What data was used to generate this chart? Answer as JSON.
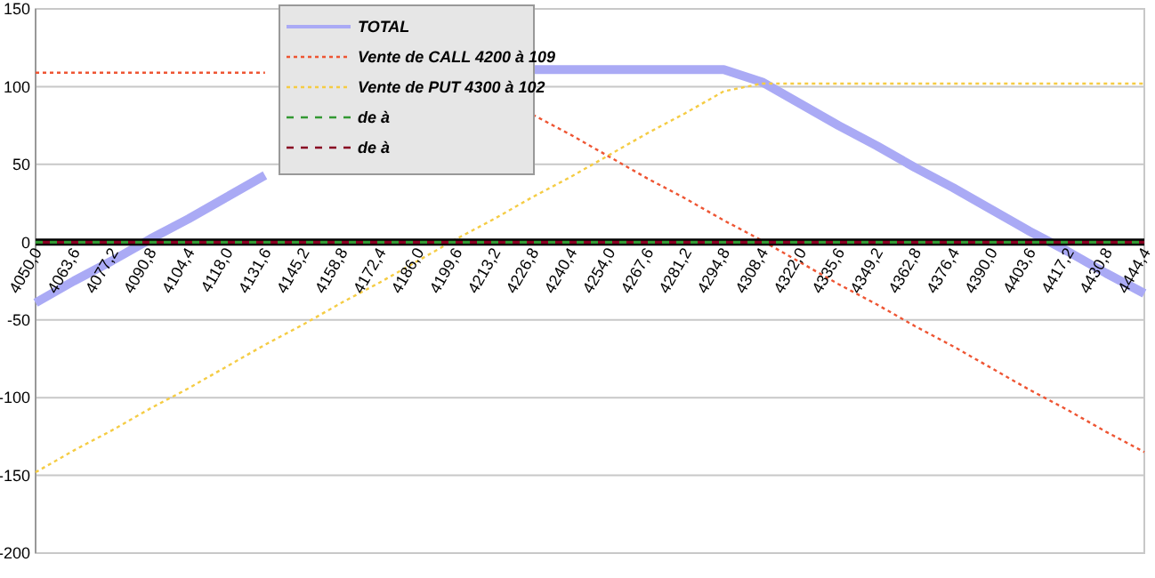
{
  "chart_data": {
    "type": "line",
    "categories": [
      "4050,0",
      "4063,6",
      "4077,2",
      "4090,8",
      "4104,4",
      "4118,0",
      "4131,6",
      "4145,2",
      "4158,8",
      "4172,4",
      "4186,0",
      "4199,6",
      "4213,2",
      "4226,8",
      "4240,4",
      "4254,0",
      "4267,6",
      "4281,2",
      "4294,8",
      "4308,4",
      "4322,0",
      "4335,6",
      "4349,2",
      "4362,8",
      "4376,4",
      "4390,0",
      "4403,6",
      "4417,2",
      "4430,8",
      "4444,4"
    ],
    "series": [
      {
        "name": "TOTAL",
        "color": "#aaaaf5",
        "line_style": "solid",
        "values": [
          -39,
          -25,
          -12,
          2,
          15,
          29,
          43,
          null,
          null,
          null,
          null,
          null,
          null,
          111,
          111,
          111,
          111,
          111,
          111,
          103,
          89,
          75,
          62,
          48,
          35,
          21,
          7,
          -6,
          -20,
          -33
        ]
      },
      {
        "name": "Vente de CALL 4200 à 109",
        "color": "#ee5533",
        "line_style": "dotted",
        "values": [
          109,
          109,
          109,
          109,
          109,
          109,
          109,
          null,
          null,
          null,
          null,
          null,
          null,
          82,
          69,
          55,
          41,
          28,
          14,
          1,
          -13,
          -27,
          -40,
          -54,
          -67,
          -81,
          -95,
          -108,
          -122,
          -135
        ]
      },
      {
        "name": "Vente de PUT 4300 à 102",
        "color": "#f5cc44",
        "line_style": "dotted",
        "values": [
          -148,
          -134,
          -121,
          -107,
          -94,
          -80,
          -66,
          -53,
          -39,
          -26,
          -12,
          2,
          15,
          29,
          42,
          56,
          70,
          83,
          97,
          102,
          102,
          102,
          102,
          102,
          102,
          102,
          102,
          102,
          102,
          102
        ]
      },
      {
        "name": "de  à",
        "color": "#339933",
        "line_style": "dashed",
        "values": [
          0,
          0,
          0,
          0,
          0,
          0,
          0,
          0,
          0,
          0,
          0,
          0,
          0,
          0,
          0,
          0,
          0,
          0,
          0,
          0,
          0,
          0,
          0,
          0,
          0,
          0,
          0,
          0,
          0,
          0
        ]
      },
      {
        "name": "de  à",
        "color": "#880022",
        "line_style": "dashed",
        "values": [
          0,
          0,
          0,
          0,
          0,
          0,
          0,
          0,
          0,
          0,
          0,
          0,
          0,
          0,
          0,
          0,
          0,
          0,
          0,
          0,
          0,
          0,
          0,
          0,
          0,
          0,
          0,
          0,
          0,
          0
        ]
      }
    ],
    "ylim": [
      -200,
      150
    ],
    "yticks": [
      -200,
      -150,
      -100,
      -50,
      0,
      50,
      100,
      150
    ],
    "grid": "y",
    "legend": "top",
    "marker": "none"
  }
}
